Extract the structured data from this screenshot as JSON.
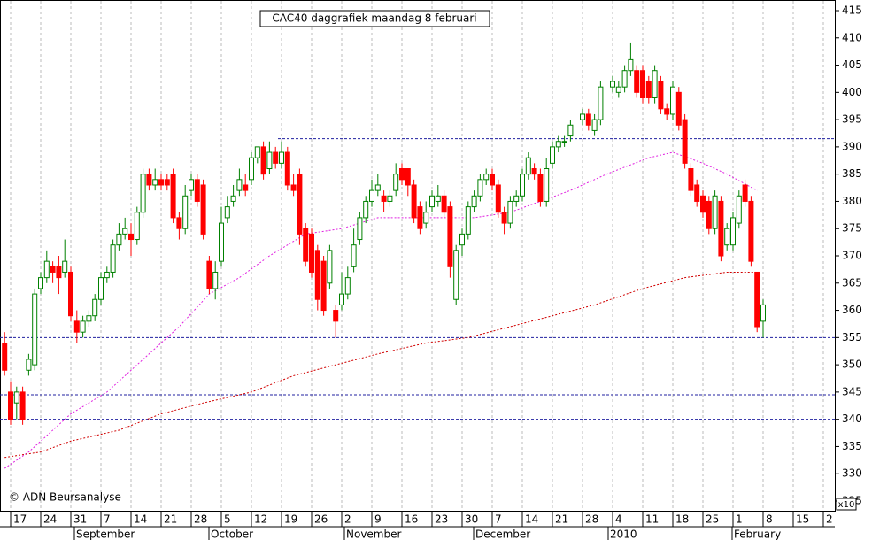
{
  "chart_data": {
    "type": "candlestick",
    "title": "CAC40 daggrafiek maandag 8 februari",
    "copyright": "© ADN Beursanalyse",
    "scale_badge": "x10",
    "ylim": [
      325,
      415
    ],
    "yticks": [
      325,
      330,
      335,
      340,
      345,
      350,
      355,
      360,
      365,
      370,
      375,
      380,
      385,
      390,
      395,
      400,
      405,
      410,
      415
    ],
    "week_labels": [
      "17",
      "24",
      "31",
      "7",
      "14",
      "21",
      "28",
      "5",
      "12",
      "19",
      "26",
      "2",
      "9",
      "16",
      "23",
      "30",
      "7",
      "14",
      "21",
      "28",
      "4",
      "11",
      "18",
      "25",
      "1",
      "8",
      "15",
      "2"
    ],
    "months": [
      "September",
      "October",
      "November",
      "December",
      "2010",
      "February"
    ],
    "up_color": "#008000",
    "down_color": "#ff0000",
    "candles": {
      "open": [
        354,
        345,
        343,
        345,
        349,
        350,
        364,
        366,
        368,
        368,
        367,
        367,
        358,
        356,
        358,
        359,
        362,
        366,
        367,
        372,
        374,
        374,
        373,
        378,
        385,
        383,
        384,
        384,
        385,
        377,
        375,
        382,
        384,
        383,
        369,
        364,
        369,
        377,
        380,
        382,
        383,
        384,
        388,
        390,
        386,
        389,
        387,
        389,
        383,
        385,
        375,
        374,
        371,
        369,
        365,
        360,
        361,
        363,
        368,
        373,
        377,
        380,
        382,
        381,
        380,
        382,
        386,
        386,
        383,
        379,
        376,
        379,
        380,
        381,
        379,
        362,
        372,
        374,
        379,
        381,
        384,
        385,
        383,
        378,
        376,
        380,
        381,
        385,
        386,
        385,
        380,
        387,
        390,
        391,
        392,
        null,
        395,
        396,
        393,
        395,
        null,
        401,
        400,
        401,
        404,
        404,
        404,
        402,
        399,
        402,
        397,
        396,
        400,
        395,
        386,
        383,
        381,
        380,
        375,
        380,
        372,
        372,
        376,
        383,
        380,
        367,
        358
      ],
      "high": [
        356,
        347,
        346,
        346,
        352,
        364,
        367,
        371,
        369,
        370,
        373,
        368,
        360,
        359,
        360,
        363,
        367,
        368,
        373,
        376,
        377,
        376,
        379,
        386,
        386,
        386,
        385,
        385,
        386,
        378,
        383,
        385,
        385,
        384,
        370,
        369,
        379,
        381,
        383,
        386,
        385,
        389,
        390,
        391,
        391,
        390,
        391,
        390,
        385,
        386,
        376,
        375,
        372,
        370,
        372,
        361,
        367,
        368,
        375,
        378,
        381,
        384,
        385,
        382,
        382,
        387,
        387,
        386,
        384,
        380,
        380,
        382,
        383,
        382,
        380,
        372,
        375,
        380,
        382,
        385,
        386,
        386,
        384,
        379,
        381,
        382,
        386,
        389,
        387,
        386,
        388,
        391,
        392,
        392,
        395,
        null,
        397,
        397,
        396,
        402,
        null,
        403,
        402,
        405,
        409,
        405,
        405,
        403,
        405,
        403,
        398,
        402,
        401,
        396,
        387,
        384,
        382,
        381,
        382,
        381,
        376,
        378,
        382,
        384,
        381,
        367,
        362
      ],
      "low": [
        348,
        339,
        340,
        339,
        348,
        349,
        363,
        365,
        365,
        363,
        366,
        358,
        354,
        355,
        357,
        358,
        361,
        365,
        366,
        371,
        373,
        370,
        372,
        377,
        382,
        382,
        382,
        382,
        376,
        373,
        374,
        381,
        379,
        373,
        363,
        362,
        368,
        376,
        379,
        381,
        381,
        383,
        387,
        384,
        385,
        386,
        386,
        382,
        381,
        372,
        368,
        366,
        360,
        359,
        364,
        355,
        360,
        362,
        367,
        372,
        376,
        379,
        381,
        378,
        379,
        381,
        383,
        381,
        376,
        374,
        375,
        378,
        379,
        377,
        366,
        361,
        370,
        373,
        378,
        380,
        383,
        382,
        377,
        374,
        375,
        379,
        380,
        384,
        384,
        379,
        379,
        386,
        389,
        390,
        391,
        null,
        394,
        393,
        392,
        394,
        null,
        400,
        399,
        400,
        403,
        399,
        398,
        398,
        398,
        396,
        395,
        395,
        393,
        386,
        381,
        379,
        377,
        374,
        374,
        369,
        371,
        371,
        375,
        379,
        368,
        356,
        355
      ],
      "close": [
        349,
        340,
        345,
        340,
        351,
        363,
        366,
        369,
        367,
        366,
        369,
        359,
        356,
        358,
        359,
        362,
        366,
        367,
        372,
        374,
        375,
        373,
        378,
        385,
        383,
        384,
        383,
        383,
        377,
        375,
        381,
        384,
        380,
        374,
        364,
        367,
        376,
        379,
        381,
        384,
        382,
        388,
        390,
        385,
        389,
        387,
        389,
        383,
        382,
        374,
        369,
        367,
        362,
        360,
        371,
        358,
        363,
        366,
        372,
        377,
        380,
        382,
        383,
        380,
        381,
        385,
        384,
        383,
        377,
        375,
        378,
        381,
        381,
        378,
        368,
        371,
        374,
        379,
        381,
        384,
        385,
        383,
        378,
        376,
        380,
        381,
        385,
        388,
        385,
        380,
        386,
        390,
        391,
        391,
        394,
        null,
        396,
        394,
        395,
        401,
        null,
        402,
        401,
        404,
        406,
        400,
        399,
        399,
        404,
        397,
        396,
        401,
        394,
        387,
        382,
        380,
        378,
        375,
        381,
        370,
        375,
        377,
        381,
        380,
        369,
        357,
        361
      ]
    },
    "series": [
      {
        "name": "MA short",
        "color": "#e020e0",
        "x": [
          0,
          4,
          11,
          17,
          23,
          29,
          34,
          39,
          44,
          50,
          56,
          62,
          68,
          73,
          78,
          84,
          89,
          94,
          100,
          107,
          111,
          116,
          120,
          125
        ],
        "values": [
          331,
          334,
          341,
          345,
          351,
          357,
          363,
          366,
          370,
          374,
          375,
          377,
          377,
          377,
          377,
          378,
          380,
          382,
          385,
          388,
          389,
          387,
          385,
          382
        ]
      },
      {
        "name": "MA long",
        "color": "#d00000",
        "x": [
          0,
          6,
          11,
          19,
          26,
          33,
          41,
          48,
          55,
          62,
          70,
          77,
          84,
          91,
          98,
          106,
          113,
          120,
          125
        ],
        "values": [
          333,
          334,
          336,
          338,
          341,
          343,
          345,
          348,
          350,
          352,
          354,
          355,
          357,
          359,
          361,
          364,
          366,
          367,
          367
        ]
      }
    ],
    "levels": [
      391.5,
      355,
      344.5,
      340
    ]
  }
}
